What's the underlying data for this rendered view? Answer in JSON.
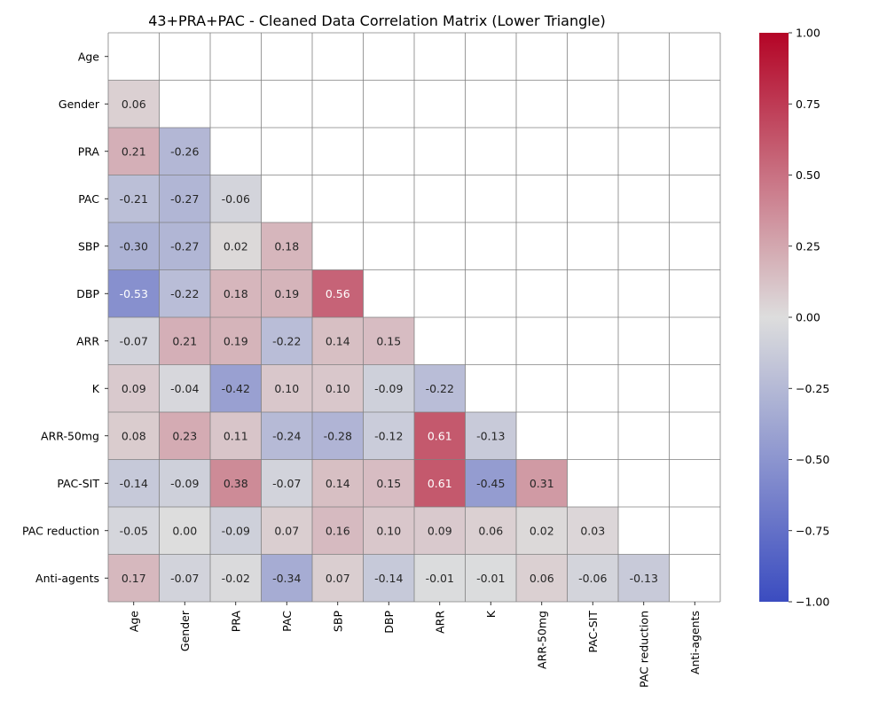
{
  "chart_data": {
    "type": "heatmap",
    "title": "43+PRA+PAC - Cleaned Data Correlation Matrix (Lower Triangle)",
    "row_labels": [
      "Age",
      "Gender",
      "PRA",
      "PAC",
      "SBP",
      "DBP",
      "ARR ",
      "K",
      "ARR-50mg",
      "PAC-SIT",
      "PAC reduction",
      "Anti-agents"
    ],
    "column_labels": [
      "Age",
      "Gender",
      "PRA",
      "PAC",
      "SBP",
      "DBP",
      "ARR",
      "K",
      "ARR-50mg",
      "PAC-SIT",
      "PAC reduction",
      "Anti-agents"
    ],
    "values": [
      [],
      [
        0.06
      ],
      [
        0.21,
        -0.26
      ],
      [
        -0.21,
        -0.27,
        -0.06
      ],
      [
        -0.3,
        -0.27,
        0.02,
        0.18
      ],
      [
        -0.53,
        -0.22,
        0.18,
        0.19,
        0.56
      ],
      [
        -0.07,
        0.21,
        0.19,
        -0.22,
        0.14,
        0.15
      ],
      [
        0.09,
        -0.04,
        -0.42,
        0.1,
        0.1,
        -0.09,
        -0.22
      ],
      [
        0.08,
        0.23,
        0.11,
        -0.24,
        -0.28,
        -0.12,
        0.61,
        -0.13
      ],
      [
        -0.14,
        -0.09,
        0.38,
        -0.07,
        0.14,
        0.15,
        0.61,
        -0.45,
        0.31
      ],
      [
        -0.05,
        0.0,
        -0.09,
        0.07,
        0.16,
        0.1,
        0.09,
        0.06,
        0.02,
        0.03
      ],
      [
        0.17,
        -0.07,
        -0.02,
        -0.34,
        0.07,
        -0.14,
        -0.01,
        -0.01,
        0.06,
        -0.06,
        -0.13
      ]
    ],
    "value_format": "two decimals",
    "colormap": "coolwarm",
    "colorbar": {
      "range": [
        -1.0,
        1.0
      ],
      "ticks": [
        "1.00",
        "0.75",
        "0.50",
        "0.25",
        "0.00",
        "−0.25",
        "−0.50",
        "−0.75",
        "−1.00"
      ],
      "tick_values": [
        1.0,
        0.75,
        0.5,
        0.25,
        0.0,
        -0.25,
        -0.5,
        -0.75,
        -1.0
      ]
    },
    "colors": {
      "low": "#3b4cc0",
      "mid": "#dddddd",
      "high": "#b40426",
      "gridline": "#808080"
    }
  }
}
